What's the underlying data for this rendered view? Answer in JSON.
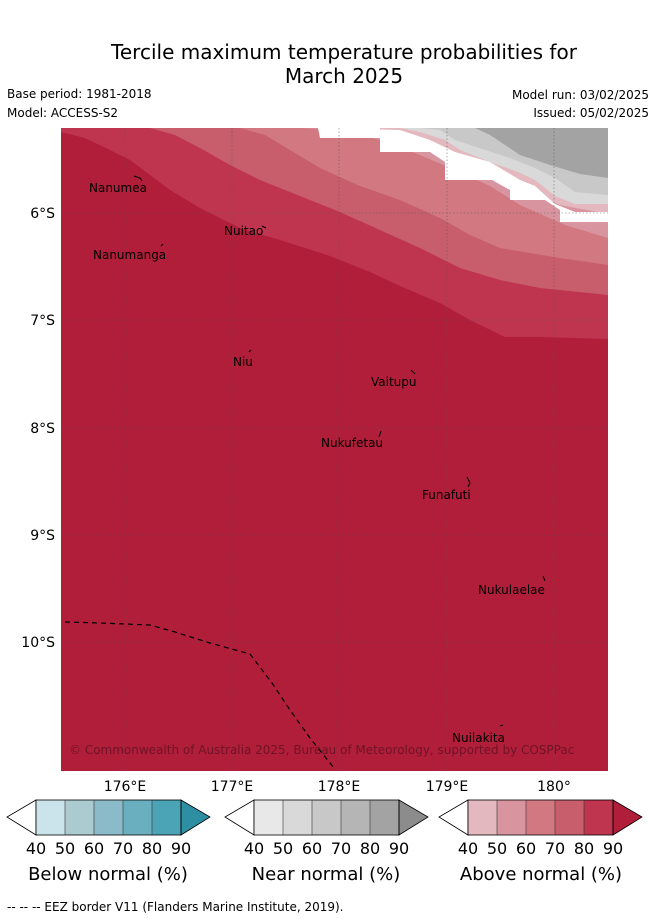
{
  "header": {
    "title_line1": "Tercile maximum temperature probabilities for",
    "title_line2": "March 2025",
    "base_period": "Base period: 1981-2018",
    "model": "Model: ACCESS-S2",
    "model_run": "Model run: 03/02/2025",
    "issued": "Issued: 05/02/2025"
  },
  "map": {
    "lat_labels": [
      "6°S",
      "7°S",
      "8°S",
      "9°S",
      "10°S"
    ],
    "lon_labels": [
      "176°E",
      "177°E",
      "178°E",
      "179°E",
      "180°"
    ],
    "places": [
      "Nanumea",
      "Nuitao",
      "Nanumanga",
      "Niu",
      "Vaitupu",
      "Nukufetau",
      "Funafuti",
      "Nukulaelae",
      "Nuilakita"
    ],
    "copyright": "© Commonwealth of Australia 2025, Bureau of Meteorology, supported by COSPPac",
    "eez_note": "--  --  -- EEZ border V11 (Flanders Marine Institute, 2019).",
    "colors": {
      "above": [
        "#e3b8bf",
        "#d9959f",
        "#d17880",
        "#c85e6b",
        "#bf3550",
        "#b11e3a"
      ],
      "near": [
        "#e8e8e8",
        "#d9d9d9",
        "#c8c8c8",
        "#b5b5b5",
        "#a3a3a3",
        "#8c8c8c"
      ],
      "below": [
        "#cbe3ea",
        "#abcbd1",
        "#8bbbc8",
        "#6aafbf",
        "#4aa4b6",
        "#2e8fa3"
      ]
    }
  },
  "colorbars": [
    {
      "title": "Below normal (%)",
      "ticks": [
        "40",
        "50",
        "60",
        "70",
        "80",
        "90"
      ]
    },
    {
      "title": "Near normal (%)",
      "ticks": [
        "40",
        "50",
        "60",
        "70",
        "80",
        "90"
      ]
    },
    {
      "title": "Above normal (%)",
      "ticks": [
        "40",
        "50",
        "60",
        "70",
        "80",
        "90"
      ]
    }
  ]
}
